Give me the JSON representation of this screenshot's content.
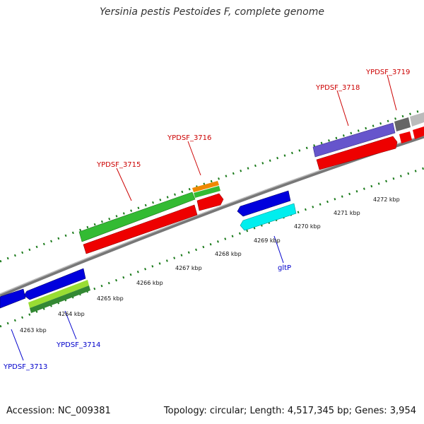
{
  "title": "Yersinia pestis Pestoides F, complete genome",
  "accession": "Accession: NC_009381",
  "meta": "Topology: circular; Length: 4,517,345 bp; Genes: 3,954",
  "kbp_labels": [
    "4263 kbp",
    "4264 kbp",
    "4265 kbp",
    "4266 kbp",
    "4267 kbp",
    "4268 kbp",
    "4269 kbp",
    "4270 kbp",
    "4271 kbp",
    "4272 kbp"
  ],
  "gene_labels_top": [
    "YPDSF_3715",
    "YPDSF_3716",
    "YPDSF_3718",
    "YPDSF_3719"
  ],
  "gene_labels_bottom": [
    "YPDSF_3713",
    "YPDSF_3714",
    "gltP"
  ],
  "colors": {
    "forward_label": "#cc0000",
    "reverse_label": "#0000cc",
    "cds_red": "#ee0000",
    "gene_green": "#33bb33",
    "gene_blue": "#0000dd",
    "gene_cyan": "#00eeee",
    "gene_purple": "#6655cc",
    "gene_orange": "#ee8800",
    "gene_lime": "#99dd33",
    "gene_gray": "#888888",
    "backbone": "#888888"
  }
}
